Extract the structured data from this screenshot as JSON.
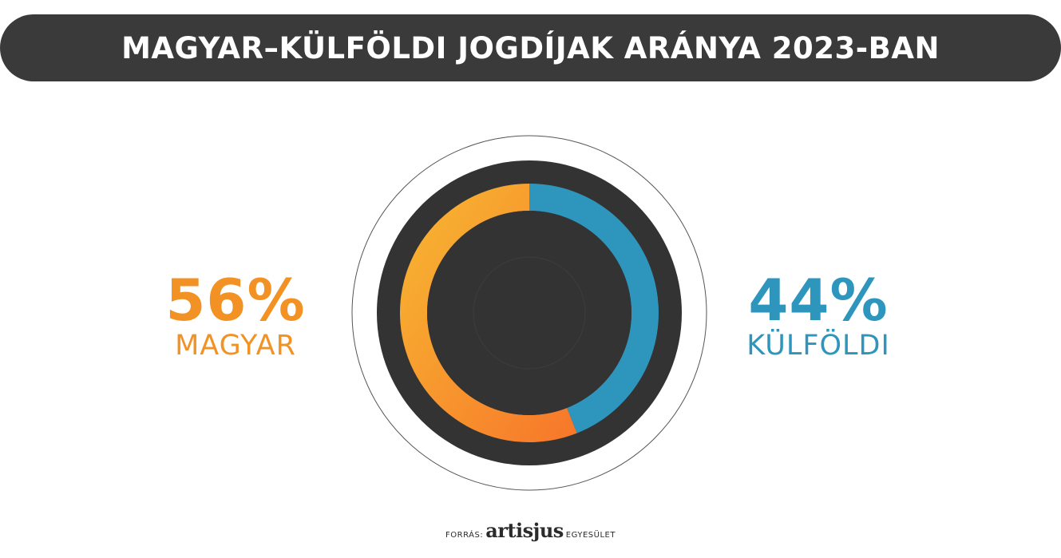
{
  "header": {
    "title": "MAGYAR–KÜLFÖLDI JOGDÍJAK ARÁNYA 2023-BAN"
  },
  "chart_data": {
    "type": "donut",
    "unit": "%",
    "categories": [
      "MAGYAR",
      "KÜLFÖLDI"
    ],
    "values": [
      56,
      44
    ],
    "labels": [
      "56%",
      "44%"
    ],
    "colors": [
      "#f39224",
      "#2e95bd"
    ],
    "gradient_colors": [
      [
        "#f7b932",
        "#f7762a"
      ],
      [
        "#2e95bd",
        "#2e95bd"
      ]
    ],
    "legend": "left-right"
  },
  "colors": {
    "title_bar": "#3a3a3a",
    "donut_body": "#333333",
    "outer_ring_stroke": "#555555"
  },
  "source": {
    "prefix": "FORRÁS:",
    "logo": "artisjus",
    "suffix": "EGYESÜLET"
  }
}
